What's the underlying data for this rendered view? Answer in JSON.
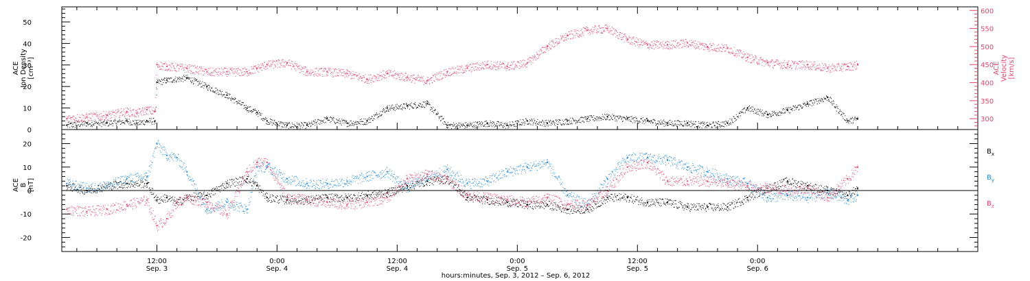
{
  "chart_data": [
    {
      "type": "scatter",
      "panel": "top",
      "left_axis_label_lines": [
        "ACE",
        "Ion Density",
        "[cm⁻³]"
      ],
      "right_axis_label_lines": [
        "ACE",
        "Velocity",
        "[km/s]"
      ],
      "left_ylim": [
        0,
        57
      ],
      "right_ylim": [
        270,
        610
      ],
      "left_ticks": [
        "0",
        "10",
        "20",
        "30",
        "40",
        "50"
      ],
      "left_tick_values": [
        0,
        10,
        20,
        30,
        40,
        50
      ],
      "right_ticks": [
        "300",
        "350",
        "400",
        "450",
        "500",
        "550",
        "600"
      ],
      "right_tick_values": [
        300,
        350,
        400,
        450,
        500,
        550,
        600
      ],
      "series": [
        {
          "name": "Ion Density",
          "axis": "left",
          "color": "#000000",
          "x_hours": [
            0,
            2,
            4,
            6,
            7,
            8,
            8.8,
            9,
            10,
            12,
            14,
            16,
            18,
            19,
            20,
            22,
            24,
            26,
            28,
            30,
            32,
            34,
            36,
            38,
            40,
            42,
            44,
            46,
            48,
            50,
            52,
            54,
            56,
            58,
            60,
            62,
            64,
            66,
            68,
            70,
            72,
            74,
            76,
            78,
            79
          ],
          "values": [
            2,
            3,
            3,
            4,
            3,
            4,
            4,
            22,
            23,
            24,
            20,
            16,
            10,
            8,
            4,
            2,
            2,
            5,
            3,
            4,
            10,
            11,
            12,
            2,
            2,
            3,
            2,
            4,
            3,
            4,
            5,
            6,
            5,
            4,
            3,
            3,
            2,
            3,
            10,
            7,
            9,
            12,
            15,
            4,
            5
          ]
        },
        {
          "name": "Velocity",
          "axis": "right",
          "color": "#e8426a",
          "x_hours": [
            0,
            2,
            4,
            6,
            7,
            8,
            8.8,
            9,
            10,
            12,
            14,
            16,
            18,
            19,
            20,
            22,
            24,
            26,
            28,
            30,
            32,
            34,
            36,
            38,
            40,
            42,
            44,
            46,
            48,
            50,
            52,
            54,
            56,
            58,
            60,
            62,
            64,
            66,
            68,
            70,
            72,
            74,
            76,
            78,
            79
          ],
          "values": [
            300,
            305,
            310,
            320,
            315,
            325,
            320,
            450,
            445,
            440,
            430,
            430,
            430,
            440,
            450,
            455,
            430,
            430,
            425,
            410,
            425,
            415,
            405,
            430,
            440,
            450,
            445,
            455,
            500,
            530,
            545,
            550,
            520,
            505,
            505,
            510,
            500,
            495,
            470,
            455,
            450,
            450,
            440,
            445,
            450
          ]
        }
      ]
    },
    {
      "type": "scatter",
      "panel": "bottom",
      "left_axis_label_lines": [
        "ACE",
        "B",
        "[nT]"
      ],
      "ylim": [
        -26,
        26
      ],
      "ticks": [
        "-20",
        "-10",
        "0",
        "10",
        "20"
      ],
      "tick_values": [
        -20,
        -10,
        0,
        10,
        20
      ],
      "zero_line": true,
      "legend": {
        "position": "right",
        "entries": [
          "Bx",
          "By",
          "Bz"
        ]
      },
      "series": [
        {
          "name": "Bx",
          "legend_main": "B",
          "legend_sub": "x",
          "color": "#000000",
          "x_hours": [
            0,
            2,
            4,
            6,
            8,
            9,
            10,
            11,
            12,
            14,
            16,
            18,
            19,
            20,
            22,
            24,
            26,
            28,
            30,
            32,
            34,
            36,
            38,
            40,
            42,
            44,
            46,
            48,
            50,
            52,
            54,
            56,
            58,
            60,
            62,
            64,
            66,
            68,
            70,
            72,
            74,
            76,
            78,
            79
          ],
          "values": [
            2,
            0,
            2,
            3,
            3,
            -4,
            -3,
            -5,
            -3,
            -2,
            3,
            5,
            2,
            -3,
            -4,
            -4,
            -3,
            -3,
            -2,
            -1,
            2,
            4,
            5,
            -3,
            -4,
            -5,
            -6,
            -6,
            -8,
            -8,
            -3,
            -3,
            -5,
            -5,
            -7,
            -7,
            -7,
            -3,
            1,
            4,
            2,
            0,
            -2,
            1
          ]
        },
        {
          "name": "By",
          "legend_main": "B",
          "legend_sub": "y",
          "color": "#1f8adb",
          "x_hours": [
            0,
            2,
            4,
            6,
            8,
            9,
            10,
            11,
            12,
            14,
            16,
            18,
            19,
            20,
            22,
            24,
            26,
            28,
            30,
            32,
            34,
            36,
            38,
            40,
            42,
            44,
            46,
            48,
            50,
            52,
            54,
            56,
            58,
            60,
            62,
            64,
            66,
            68,
            70,
            72,
            74,
            76,
            78,
            79
          ],
          "values": [
            3,
            1,
            2,
            5,
            6,
            20,
            15,
            14,
            8,
            -8,
            -5,
            -8,
            10,
            10,
            5,
            3,
            3,
            4,
            6,
            8,
            1,
            6,
            9,
            3,
            4,
            8,
            10,
            12,
            -2,
            -6,
            5,
            14,
            14,
            13,
            10,
            8,
            5,
            3,
            -3,
            -2,
            -3,
            -1,
            -4,
            -2
          ]
        },
        {
          "name": "Bz",
          "legend_main": "B",
          "legend_sub": "z",
          "color": "#e8426a",
          "x_hours": [
            0,
            2,
            4,
            6,
            8,
            9,
            10,
            11,
            12,
            14,
            16,
            18,
            19,
            20,
            22,
            24,
            26,
            28,
            30,
            32,
            34,
            36,
            38,
            40,
            42,
            44,
            46,
            48,
            50,
            52,
            54,
            56,
            58,
            60,
            62,
            64,
            66,
            68,
            70,
            72,
            74,
            76,
            78,
            79
          ],
          "values": [
            -8,
            -9,
            -8,
            -6,
            -4,
            -15,
            -12,
            -5,
            -3,
            -5,
            -10,
            8,
            12,
            12,
            -3,
            -4,
            -5,
            -6,
            -5,
            -3,
            5,
            7,
            5,
            -2,
            -3,
            -4,
            -5,
            -3,
            -6,
            -6,
            0,
            10,
            12,
            4,
            4,
            4,
            3,
            2,
            1,
            0,
            1,
            -3,
            5,
            10
          ]
        }
      ]
    }
  ],
  "x_axis": {
    "range_hours": [
      -0.5,
      91
    ],
    "ticks": [
      {
        "hours": 9,
        "line1": "12:00",
        "line2": "Sep. 3"
      },
      {
        "hours": 21,
        "line1": "0:00",
        "line2": "Sep. 4"
      },
      {
        "hours": 33,
        "line1": "12:00",
        "line2": "Sep. 4"
      },
      {
        "hours": 45,
        "line1": "0:00",
        "line2": "Sep. 5"
      },
      {
        "hours": 57,
        "line1": "12:00",
        "line2": "Sep. 5"
      },
      {
        "hours": 69,
        "line1": "0:00",
        "line2": "Sep. 6"
      }
    ],
    "title": "hours:minutes, Sep.  3, 2012 – Sep.  6, 2012"
  }
}
